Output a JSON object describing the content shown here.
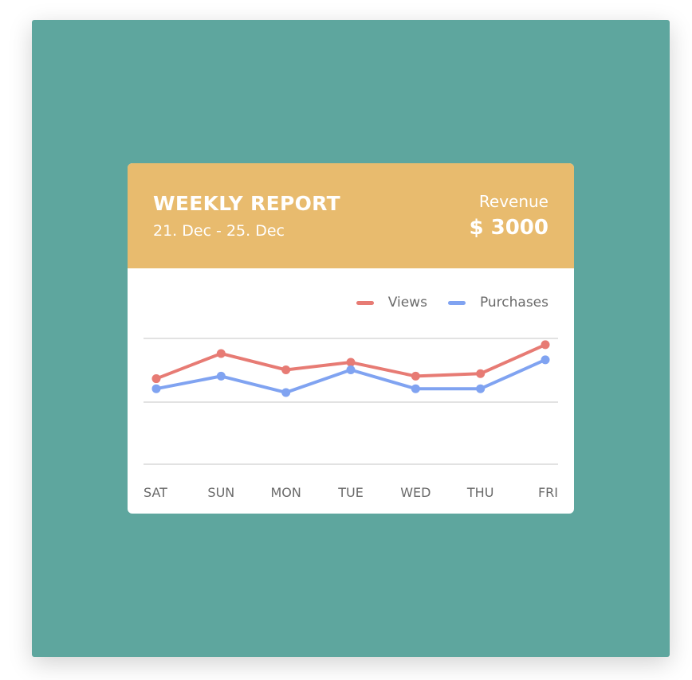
{
  "colors": {
    "backdrop": "#5ea69e",
    "header": "#e8bb6e",
    "views": "#e77b74",
    "purchases": "#80a3f1",
    "grid": "#d9d9d9",
    "tick_text": "#6a6a6a"
  },
  "card": {
    "title": "WEEKLY REPORT",
    "date_range": "21. Dec - 25. Dec",
    "revenue_label": "Revenue",
    "revenue_value": "$ 3000"
  },
  "chart_data": {
    "type": "line",
    "categories": [
      "SAT",
      "SUN",
      "MON",
      "TUE",
      "WED",
      "THU",
      "FRI"
    ],
    "series": [
      {
        "name": "Views",
        "values": [
          68,
          88,
          75,
          81,
          70,
          72,
          95
        ]
      },
      {
        "name": "Purchases",
        "values": [
          60,
          70,
          57,
          75,
          60,
          60,
          83
        ]
      }
    ],
    "ylim": [
      0,
      100
    ],
    "grid": true,
    "legend": "top-right",
    "title": "",
    "xlabel": "",
    "ylabel": ""
  }
}
